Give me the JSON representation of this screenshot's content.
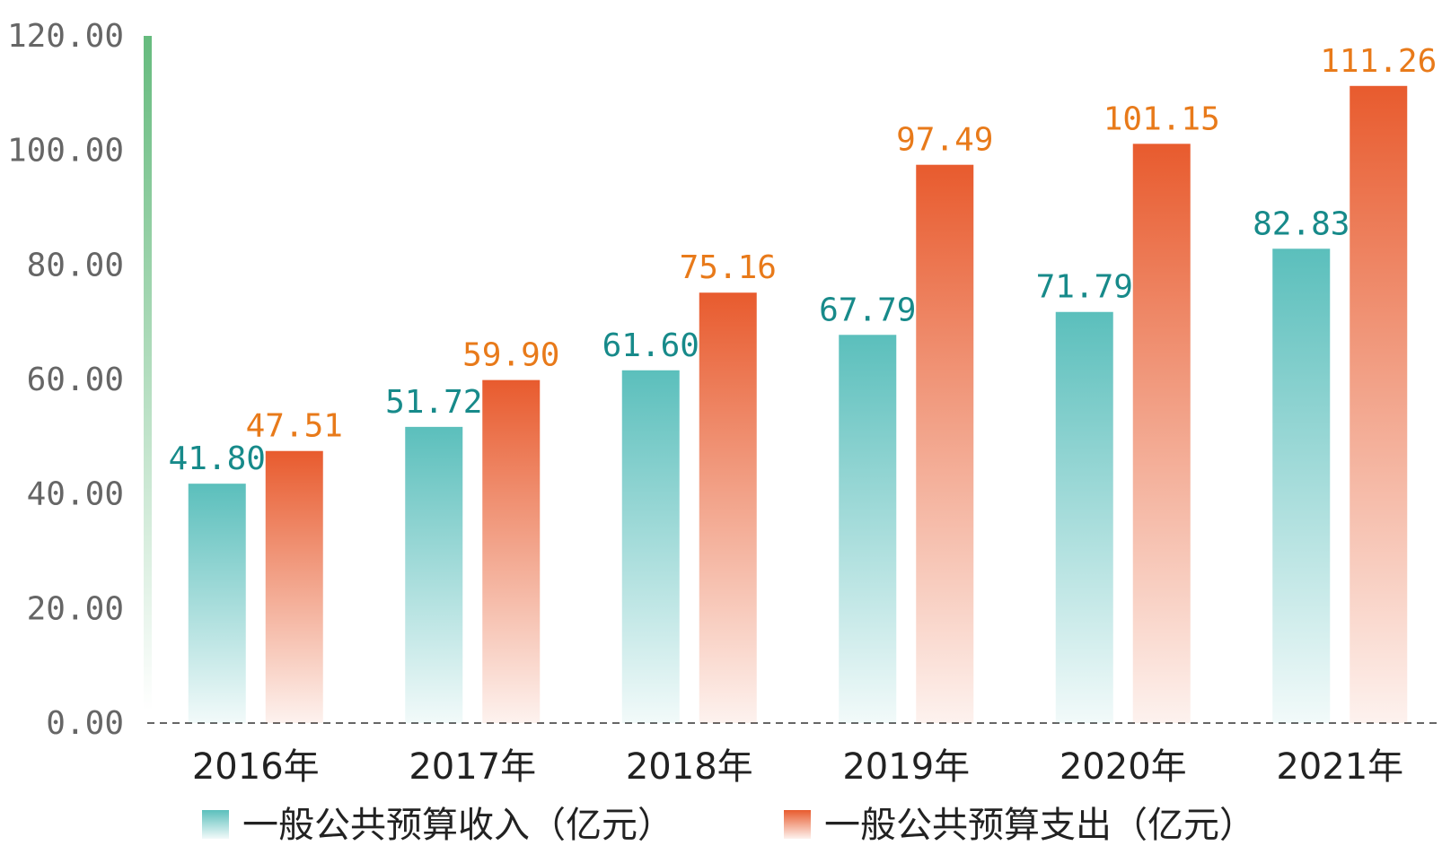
{
  "chart_data": {
    "type": "bar",
    "categories": [
      "2016年",
      "2017年",
      "2018年",
      "2019年",
      "2020年",
      "2021年"
    ],
    "series": [
      {
        "name": "一般公共预算收入（亿元）",
        "values": [
          41.8,
          51.72,
          61.6,
          67.79,
          71.79,
          82.83
        ],
        "labels": [
          "41.80",
          "51.72",
          "61.60",
          "67.79",
          "71.79",
          "82.83"
        ],
        "color": "#5bbfbc",
        "label_color": "#178a8a"
      },
      {
        "name": "一般公共预算支出（亿元）",
        "values": [
          47.51,
          59.9,
          75.16,
          97.49,
          101.15,
          111.26
        ],
        "labels": [
          "47.51",
          "59.90",
          "75.16",
          "97.49",
          "101.15",
          "111.26"
        ],
        "color": "#e85b2e",
        "label_color": "#e87a1a"
      }
    ],
    "ylim": [
      0,
      120
    ],
    "yticks": [
      "0.00",
      "20.00",
      "40.00",
      "60.00",
      "80.00",
      "100.00",
      "120.00"
    ],
    "legend": "bottom",
    "grid": false
  }
}
